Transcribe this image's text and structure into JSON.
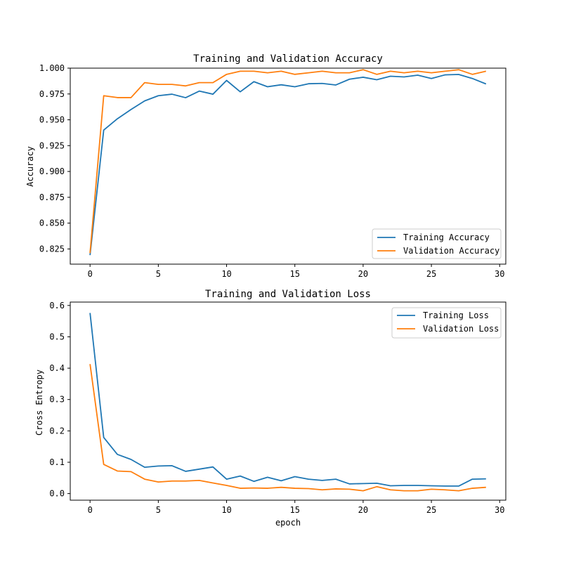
{
  "chart_data": [
    {
      "type": "line",
      "title": "Training and Validation Accuracy",
      "xlabel": "",
      "ylabel": "Accuracy",
      "xlim": [
        -1.45,
        30.45
      ],
      "ylim": [
        0.8103,
        1.0
      ],
      "xticks": [
        0,
        5,
        10,
        15,
        20,
        25,
        30
      ],
      "yticks": [
        0.825,
        0.85,
        0.875,
        0.9,
        0.925,
        0.95,
        0.975,
        1.0
      ],
      "ytick_labels": [
        "0.825",
        "0.850",
        "0.875",
        "0.900",
        "0.925",
        "0.950",
        "0.975",
        "1.000"
      ],
      "grid": false,
      "legend_position": "lower-right",
      "x": [
        0,
        1,
        2,
        3,
        4,
        5,
        6,
        7,
        8,
        9,
        10,
        11,
        12,
        13,
        14,
        15,
        16,
        17,
        18,
        19,
        20,
        21,
        22,
        23,
        24,
        25,
        26,
        27,
        28,
        29
      ],
      "series": [
        {
          "name": "Training Accuracy",
          "color": "#1f77b4",
          "values": [
            0.819,
            0.94,
            0.951,
            0.96,
            0.9683,
            0.9733,
            0.9748,
            0.9714,
            0.9778,
            0.9748,
            0.9881,
            0.9771,
            0.9869,
            0.982,
            0.9839,
            0.982,
            0.9849,
            0.9852,
            0.9837,
            0.9893,
            0.9912,
            0.9888,
            0.9922,
            0.9915,
            0.9932,
            0.99,
            0.9935,
            0.9939,
            0.99,
            0.9847
          ]
        },
        {
          "name": "Validation Accuracy",
          "color": "#ff7f0e",
          "values": [
            0.821,
            0.9733,
            0.9715,
            0.9715,
            0.986,
            0.9843,
            0.9843,
            0.9828,
            0.986,
            0.986,
            0.994,
            0.997,
            0.997,
            0.9955,
            0.997,
            0.994,
            0.9955,
            0.997,
            0.9955,
            0.9955,
            0.9985,
            0.994,
            0.997,
            0.9955,
            0.997,
            0.9955,
            0.997,
            0.9985,
            0.994,
            0.997
          ]
        }
      ]
    },
    {
      "type": "line",
      "title": "Training and Validation Loss",
      "xlabel": "epoch",
      "ylabel": "Cross Entropy",
      "xlim": [
        -1.45,
        30.45
      ],
      "ylim": [
        -0.021,
        0.6108
      ],
      "xticks": [
        0,
        5,
        10,
        15,
        20,
        25,
        30
      ],
      "yticks": [
        0.0,
        0.1,
        0.2,
        0.3,
        0.4,
        0.5,
        0.6
      ],
      "ytick_labels": [
        "0.0",
        "0.1",
        "0.2",
        "0.3",
        "0.4",
        "0.5",
        "0.6"
      ],
      "grid": false,
      "legend_position": "upper-right",
      "x": [
        0,
        1,
        2,
        3,
        4,
        5,
        6,
        7,
        8,
        9,
        10,
        11,
        12,
        13,
        14,
        15,
        16,
        17,
        18,
        19,
        20,
        21,
        22,
        23,
        24,
        25,
        26,
        27,
        28,
        29
      ],
      "series": [
        {
          "name": "Training Loss",
          "color": "#1f77b4",
          "values": [
            0.576,
            0.179,
            0.125,
            0.109,
            0.084,
            0.088,
            0.089,
            0.071,
            0.078,
            0.085,
            0.046,
            0.056,
            0.039,
            0.052,
            0.041,
            0.054,
            0.046,
            0.042,
            0.046,
            0.031,
            0.032,
            0.033,
            0.025,
            0.026,
            0.026,
            0.025,
            0.024,
            0.024,
            0.046,
            0.047
          ]
        },
        {
          "name": "Validation Loss",
          "color": "#ff7f0e",
          "values": [
            0.413,
            0.093,
            0.072,
            0.07,
            0.046,
            0.037,
            0.04,
            0.04,
            0.042,
            0.034,
            0.026,
            0.017,
            0.018,
            0.017,
            0.02,
            0.017,
            0.016,
            0.012,
            0.015,
            0.014,
            0.009,
            0.022,
            0.012,
            0.009,
            0.009,
            0.014,
            0.012,
            0.009,
            0.017,
            0.02
          ]
        }
      ]
    }
  ]
}
